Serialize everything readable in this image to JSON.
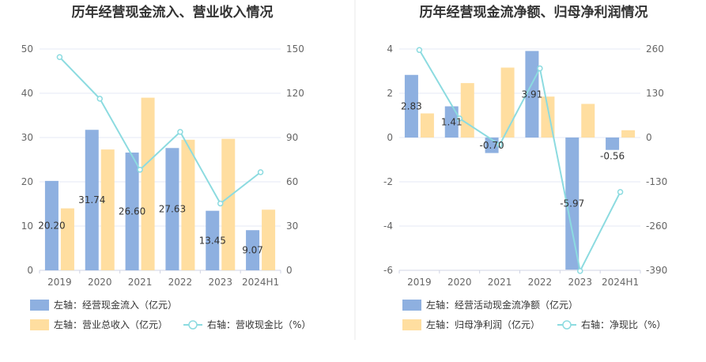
{
  "colors": {
    "bar_blue": "#8eb0e0",
    "bar_orange": "#ffdea0",
    "line_teal": "#8cdbe0",
    "grid": "#e6e9f5",
    "divider": "#e8e8e8"
  },
  "chart_data": [
    {
      "type": "bar",
      "title": "历年经营现金流入、营业收入情况",
      "categories": [
        "2019",
        "2020",
        "2021",
        "2022",
        "2023",
        "2024H1"
      ],
      "left_axis": {
        "ticks": [
          "0",
          "10",
          "20",
          "30",
          "40",
          "50"
        ],
        "ylim": [
          0,
          50
        ]
      },
      "right_axis": {
        "ticks": [
          "0",
          "30",
          "60",
          "90",
          "120",
          "150"
        ],
        "ylim": [
          0,
          150
        ]
      },
      "grid": true,
      "legend_position": "bottom-left",
      "series": [
        {
          "name": "左轴：经营现金流入（亿元）",
          "type": "bar",
          "axis": "left",
          "values": [
            20.2,
            31.74,
            26.6,
            27.63,
            13.45,
            9.07
          ],
          "labels": [
            "20.20",
            "31.74",
            "26.60",
            "27.63",
            "13.45",
            "9.07"
          ]
        },
        {
          "name": "左轴：营业总收入（亿元）",
          "type": "bar",
          "axis": "left",
          "values": [
            14.0,
            27.3,
            39.0,
            29.5,
            29.7,
            13.7
          ]
        },
        {
          "name": "右轴：营收现金比（%）",
          "type": "line",
          "axis": "right",
          "values": [
            144.5,
            116.3,
            68.2,
            93.8,
            45.3,
            66.5
          ]
        }
      ]
    },
    {
      "type": "bar",
      "title": "历年经营现金流净额、归母净利润情况",
      "categories": [
        "2019",
        "2020",
        "2021",
        "2022",
        "2023",
        "2024H1"
      ],
      "left_axis": {
        "ticks": [
          "-6",
          "-4",
          "-2",
          "0",
          "2",
          "4"
        ],
        "ylim": [
          -6,
          4
        ]
      },
      "right_axis": {
        "ticks": [
          "-390",
          "-260",
          "-130",
          "0",
          "130",
          "260"
        ],
        "ylim": [
          -390,
          260
        ]
      },
      "grid": true,
      "legend_position": "bottom-left",
      "series": [
        {
          "name": "左轴：经营活动现金流净额（亿元）",
          "type": "bar",
          "axis": "left",
          "values": [
            2.83,
            1.41,
            -0.7,
            3.91,
            -5.97,
            -0.56
          ],
          "labels": [
            "2.83",
            "1.41",
            "-0.70",
            "3.91",
            "-5.97",
            "-0.56"
          ]
        },
        {
          "name": "左轴：归母净利润（亿元）",
          "type": "bar",
          "axis": "left",
          "values": [
            1.09,
            2.46,
            3.16,
            1.85,
            1.52,
            0.33
          ]
        },
        {
          "name": "右轴：净现比（%）",
          "type": "line",
          "axis": "right",
          "values": [
            257,
            56,
            -21,
            203,
            -392,
            -160
          ]
        }
      ]
    }
  ]
}
